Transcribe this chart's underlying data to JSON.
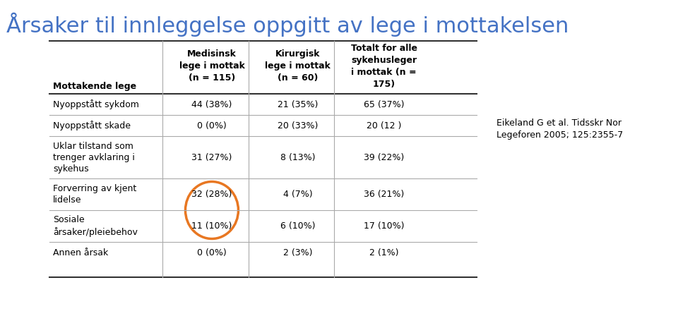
{
  "title": "Årsaker til innleggelse oppgitt av lege i mottakelsen",
  "title_color": "#4472C4",
  "title_fontsize": 22,
  "headers": [
    "Mottakende lege",
    "Medisinsk\nlege i mottak\n(n = 115)",
    "Kirurgisk\nlege i mottak\n(n = 60)",
    "Totalt for alle\nsykehusleger\ni mottak (n =\n175)"
  ],
  "rows": [
    [
      "Nyoppstått sykdom",
      "44 (38%)",
      "21 (35%)",
      "65 (37%)"
    ],
    [
      "Nyoppstått skade",
      "0 (0%)",
      "20 (33%)",
      "20 (12 )"
    ],
    [
      "Uklar tilstand som\ntrenger avklaring i\nsykehus",
      "31 (27%)",
      "8 (13%)",
      "39 (22%)"
    ],
    [
      "Forverring av kjent\nlidelse",
      "32 (28%)",
      "4 (7%)",
      "36 (21%)"
    ],
    [
      "Sosiale\nårsaker/pleiebehov",
      "11 (10%)",
      "6 (10%)",
      "17 (10%)"
    ],
    [
      "Annen årsak",
      "0 (0%)",
      "2 (3%)",
      "2 (1%)"
    ]
  ],
  "citation": "Eikeland G et al. Tidsskr Nor\nLegeforen 2005; 125:2355-7",
  "citation_fontsize": 9,
  "circle_color": "#E87722",
  "background_color": "#ffffff",
  "font_family": "Arial"
}
